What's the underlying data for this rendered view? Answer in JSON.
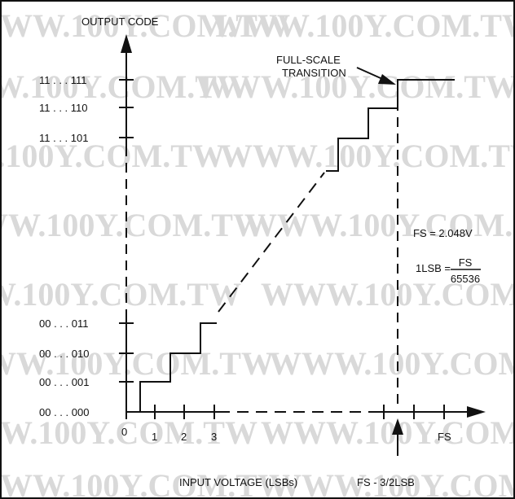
{
  "watermark": "WWW.100Y.COM.TW",
  "y_axis_title": "OUTPUT CODE",
  "x_axis_title": "INPUT VOLTAGE (LSBs)",
  "y_codes": [
    "11 . . . 111",
    "11 . . . 110",
    "11 . . . 101",
    "00 . . . 011",
    "00 . . . 010",
    "00 . . . 001",
    "00 . . . 000"
  ],
  "x_ticks": [
    "0",
    "1",
    "2",
    "3",
    "FS"
  ],
  "annotations": {
    "full_scale_line1": "FULL-SCALE",
    "full_scale_line2": "TRANSITION",
    "fs_value": "FS = 2.048V",
    "lsb_prefix": "1LSB =",
    "lsb_numerator": "FS",
    "lsb_denominator": "65536",
    "fs_minus": "FS - 3/2LSB"
  },
  "colors": {
    "line": "#111111",
    "watermark": "#d9d9d9"
  }
}
